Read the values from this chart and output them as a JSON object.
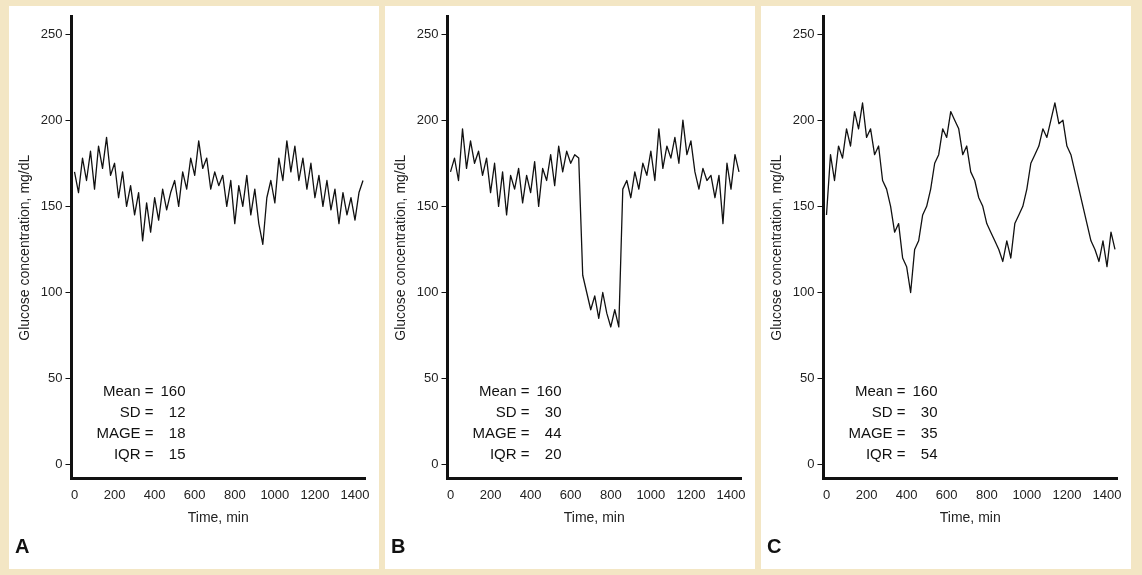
{
  "chart_data": [
    {
      "type": "line",
      "color": "#111111",
      "xlabel": "Time, min",
      "ylabel": "Glucose concentration, mg/dL",
      "xlim": [
        -15,
        1450
      ],
      "ylim": [
        -8,
        260
      ],
      "xticks": [
        0,
        200,
        400,
        600,
        800,
        1000,
        1200,
        1400
      ],
      "yticks": [
        0,
        50,
        100,
        150,
        200,
        250
      ],
      "grid": false,
      "legend": false,
      "annotations": [
        "A",
        "Mean = 160",
        "SD =   12",
        "MAGE =   18",
        "IQR =   15"
      ],
      "x": [
        0,
        20,
        40,
        60,
        80,
        100,
        120,
        140,
        160,
        180,
        200,
        220,
        240,
        260,
        280,
        300,
        320,
        340,
        360,
        380,
        400,
        420,
        440,
        460,
        480,
        500,
        520,
        540,
        560,
        580,
        600,
        620,
        640,
        660,
        680,
        700,
        720,
        740,
        760,
        780,
        800,
        820,
        840,
        860,
        880,
        900,
        920,
        940,
        960,
        980,
        1000,
        1020,
        1040,
        1060,
        1080,
        1100,
        1120,
        1140,
        1160,
        1180,
        1200,
        1220,
        1240,
        1260,
        1280,
        1300,
        1320,
        1340,
        1360,
        1380,
        1400,
        1420,
        1440
      ],
      "values": [
        170,
        158,
        178,
        165,
        182,
        160,
        185,
        172,
        190,
        168,
        175,
        155,
        170,
        150,
        162,
        145,
        158,
        130,
        152,
        135,
        155,
        142,
        160,
        148,
        158,
        165,
        150,
        170,
        160,
        178,
        168,
        188,
        172,
        178,
        160,
        170,
        162,
        168,
        150,
        165,
        140,
        162,
        150,
        168,
        145,
        160,
        140,
        128,
        155,
        165,
        152,
        178,
        165,
        188,
        170,
        185,
        165,
        178,
        160,
        175,
        155,
        168,
        150,
        165,
        148,
        160,
        140,
        158,
        145,
        155,
        142,
        158,
        165
      ]
    },
    {
      "type": "line",
      "color": "#111111",
      "xlabel": "Time, min",
      "ylabel": "Glucose concentration, mg/dL",
      "xlim": [
        -15,
        1450
      ],
      "ylim": [
        -8,
        260
      ],
      "xticks": [
        0,
        200,
        400,
        600,
        800,
        1000,
        1200,
        1400
      ],
      "yticks": [
        0,
        50,
        100,
        150,
        200,
        250
      ],
      "grid": false,
      "legend": false,
      "annotations": [
        "B",
        "Mean = 160",
        "SD =   30",
        "MAGE =   44",
        "IQR =   20"
      ],
      "x": [
        0,
        20,
        40,
        60,
        80,
        100,
        120,
        140,
        160,
        180,
        200,
        220,
        240,
        260,
        280,
        300,
        320,
        340,
        360,
        380,
        400,
        420,
        440,
        460,
        480,
        500,
        520,
        540,
        560,
        580,
        600,
        620,
        640,
        660,
        680,
        700,
        720,
        740,
        760,
        780,
        800,
        820,
        840,
        860,
        880,
        900,
        920,
        940,
        960,
        980,
        1000,
        1020,
        1040,
        1060,
        1080,
        1100,
        1120,
        1140,
        1160,
        1180,
        1200,
        1220,
        1240,
        1260,
        1280,
        1300,
        1320,
        1340,
        1360,
        1380,
        1400,
        1420,
        1440
      ],
      "values": [
        170,
        178,
        165,
        195,
        172,
        188,
        175,
        182,
        168,
        178,
        158,
        175,
        150,
        170,
        145,
        168,
        160,
        172,
        152,
        168,
        158,
        176,
        150,
        172,
        165,
        180,
        162,
        185,
        170,
        182,
        175,
        180,
        178,
        110,
        100,
        90,
        98,
        85,
        100,
        88,
        80,
        90,
        80,
        160,
        165,
        155,
        170,
        160,
        175,
        168,
        182,
        165,
        195,
        172,
        185,
        178,
        190,
        175,
        200,
        180,
        188,
        170,
        160,
        172,
        165,
        168,
        155,
        168,
        140,
        175,
        160,
        180,
        170
      ]
    },
    {
      "type": "line",
      "color": "#111111",
      "xlabel": "Time, min",
      "ylabel": "Glucose concentration, mg/dL",
      "xlim": [
        -15,
        1450
      ],
      "ylim": [
        -8,
        260
      ],
      "xticks": [
        0,
        200,
        400,
        600,
        800,
        1000,
        1200,
        1400
      ],
      "yticks": [
        0,
        50,
        100,
        150,
        200,
        250
      ],
      "grid": false,
      "legend": false,
      "annotations": [
        "C",
        "Mean = 160",
        "SD =   30",
        "MAGE =   35",
        "IQR =   54"
      ],
      "x": [
        0,
        20,
        40,
        60,
        80,
        100,
        120,
        140,
        160,
        180,
        200,
        220,
        240,
        260,
        280,
        300,
        320,
        340,
        360,
        380,
        400,
        420,
        440,
        460,
        480,
        500,
        520,
        540,
        560,
        580,
        600,
        620,
        640,
        660,
        680,
        700,
        720,
        740,
        760,
        780,
        800,
        820,
        840,
        860,
        880,
        900,
        920,
        940,
        960,
        980,
        1000,
        1020,
        1040,
        1060,
        1080,
        1100,
        1120,
        1140,
        1160,
        1180,
        1200,
        1220,
        1240,
        1260,
        1280,
        1300,
        1320,
        1340,
        1360,
        1380,
        1400,
        1420,
        1440
      ],
      "values": [
        145,
        180,
        165,
        185,
        178,
        195,
        185,
        205,
        195,
        210,
        190,
        195,
        180,
        185,
        165,
        160,
        150,
        135,
        140,
        120,
        115,
        100,
        125,
        130,
        145,
        150,
        160,
        175,
        180,
        195,
        190,
        205,
        200,
        195,
        180,
        185,
        170,
        165,
        155,
        150,
        140,
        135,
        130,
        125,
        118,
        130,
        120,
        140,
        145,
        150,
        160,
        175,
        180,
        185,
        195,
        190,
        200,
        210,
        198,
        200,
        185,
        180,
        170,
        160,
        150,
        140,
        130,
        125,
        118,
        130,
        115,
        135,
        125
      ]
    }
  ]
}
